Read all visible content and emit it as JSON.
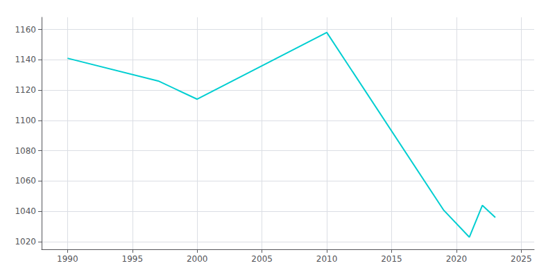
{
  "chart_data": {
    "type": "line",
    "x": [
      1990,
      1997,
      2000,
      2010,
      2019,
      2021,
      2022,
      2023
    ],
    "values": [
      1141,
      1126,
      1114,
      1158,
      1041,
      1023,
      1044,
      1036
    ],
    "color": "#00CED1",
    "xlim": [
      1988,
      2026
    ],
    "ylim": [
      1015,
      1168
    ],
    "xticks": [
      1990,
      1995,
      2000,
      2005,
      2010,
      2015,
      2020,
      2025
    ],
    "yticks": [
      1020,
      1040,
      1060,
      1080,
      1100,
      1120,
      1140,
      1160
    ],
    "grid": true
  }
}
